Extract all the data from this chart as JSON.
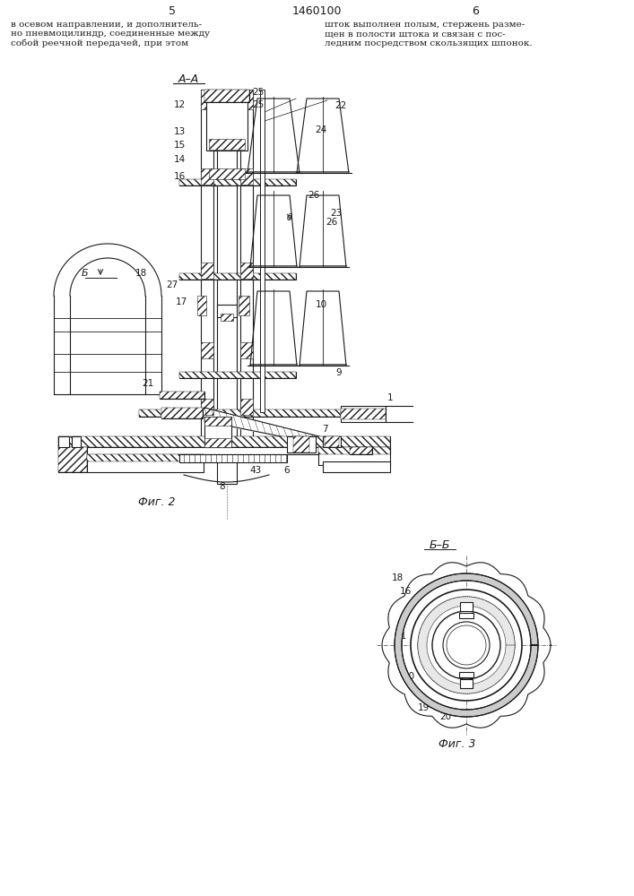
{
  "page_num_left": "5",
  "page_num_center": "1460100",
  "page_num_right": "6",
  "text_left": "в осевом направлении, и дополнитель-\nно пневмоцилиндр, соединенные между\nсобой реечной передачей, при этом",
  "text_right": "шток выполнен полым, стержень разме-\nщен в полости штока и связан с пос-\nледним посредством скользящих шпонок.",
  "fig2_caption": "Фиг. 2",
  "fig3_caption": "Фиг. 3",
  "bg_color": "#ffffff",
  "line_color": "#1a1a1a"
}
